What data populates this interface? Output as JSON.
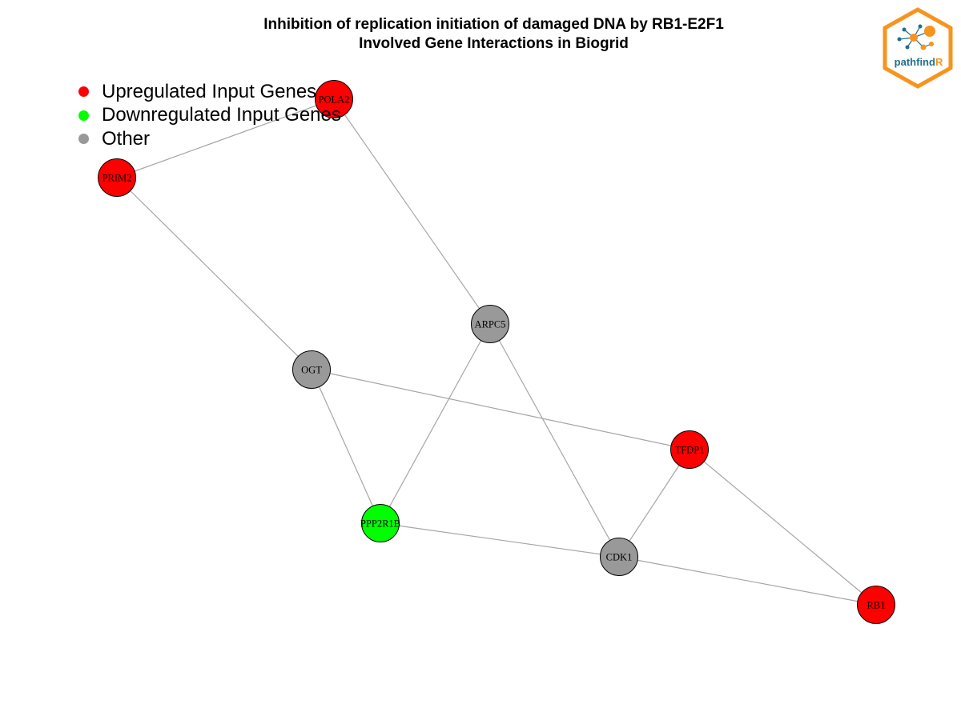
{
  "title": {
    "line1": "Inhibition of replication initiation of damaged DNA by RB1-E2F1",
    "line2": "Involved Gene Interactions in Biogrid"
  },
  "legend": [
    {
      "label": "Upregulated Input Genes",
      "color": "#ff0000"
    },
    {
      "label": "Downregulated Input Genes",
      "color": "#00ff00"
    },
    {
      "label": "Other",
      "color": "#999999"
    }
  ],
  "colors": {
    "upregulated": "#ff0000",
    "downregulated": "#00ff00",
    "other": "#999999",
    "edge": "#a6a6a6",
    "node_border": "#000000",
    "logo_orange": "#f7941d",
    "logo_blue": "#1f6f8b"
  },
  "nodes": [
    {
      "id": "POLA2",
      "label": "POLA2",
      "group": "upregulated"
    },
    {
      "id": "PRIM2",
      "label": "PRIM2",
      "group": "upregulated"
    },
    {
      "id": "ARPC5",
      "label": "ARPC5",
      "group": "other"
    },
    {
      "id": "OGT",
      "label": "OGT",
      "group": "other"
    },
    {
      "id": "TFDP1",
      "label": "TFDP1",
      "group": "upregulated"
    },
    {
      "id": "PPP2R1B",
      "label": "PPP2R1B",
      "group": "downregulated"
    },
    {
      "id": "CDK1",
      "label": "CDK1",
      "group": "other"
    },
    {
      "id": "RB1",
      "label": "RB1",
      "group": "upregulated"
    }
  ],
  "edges": [
    [
      "POLA2",
      "PRIM2"
    ],
    [
      "POLA2",
      "ARPC5"
    ],
    [
      "PRIM2",
      "OGT"
    ],
    [
      "OGT",
      "TFDP1"
    ],
    [
      "OGT",
      "PPP2R1B"
    ],
    [
      "ARPC5",
      "PPP2R1B"
    ],
    [
      "ARPC5",
      "CDK1"
    ],
    [
      "TFDP1",
      "CDK1"
    ],
    [
      "TFDP1",
      "RB1"
    ],
    [
      "PPP2R1B",
      "CDK1"
    ],
    [
      "CDK1",
      "RB1"
    ]
  ],
  "logo": {
    "text_main": "pathfind",
    "text_accent": "R",
    "icon": "network-hexagon-logo"
  }
}
